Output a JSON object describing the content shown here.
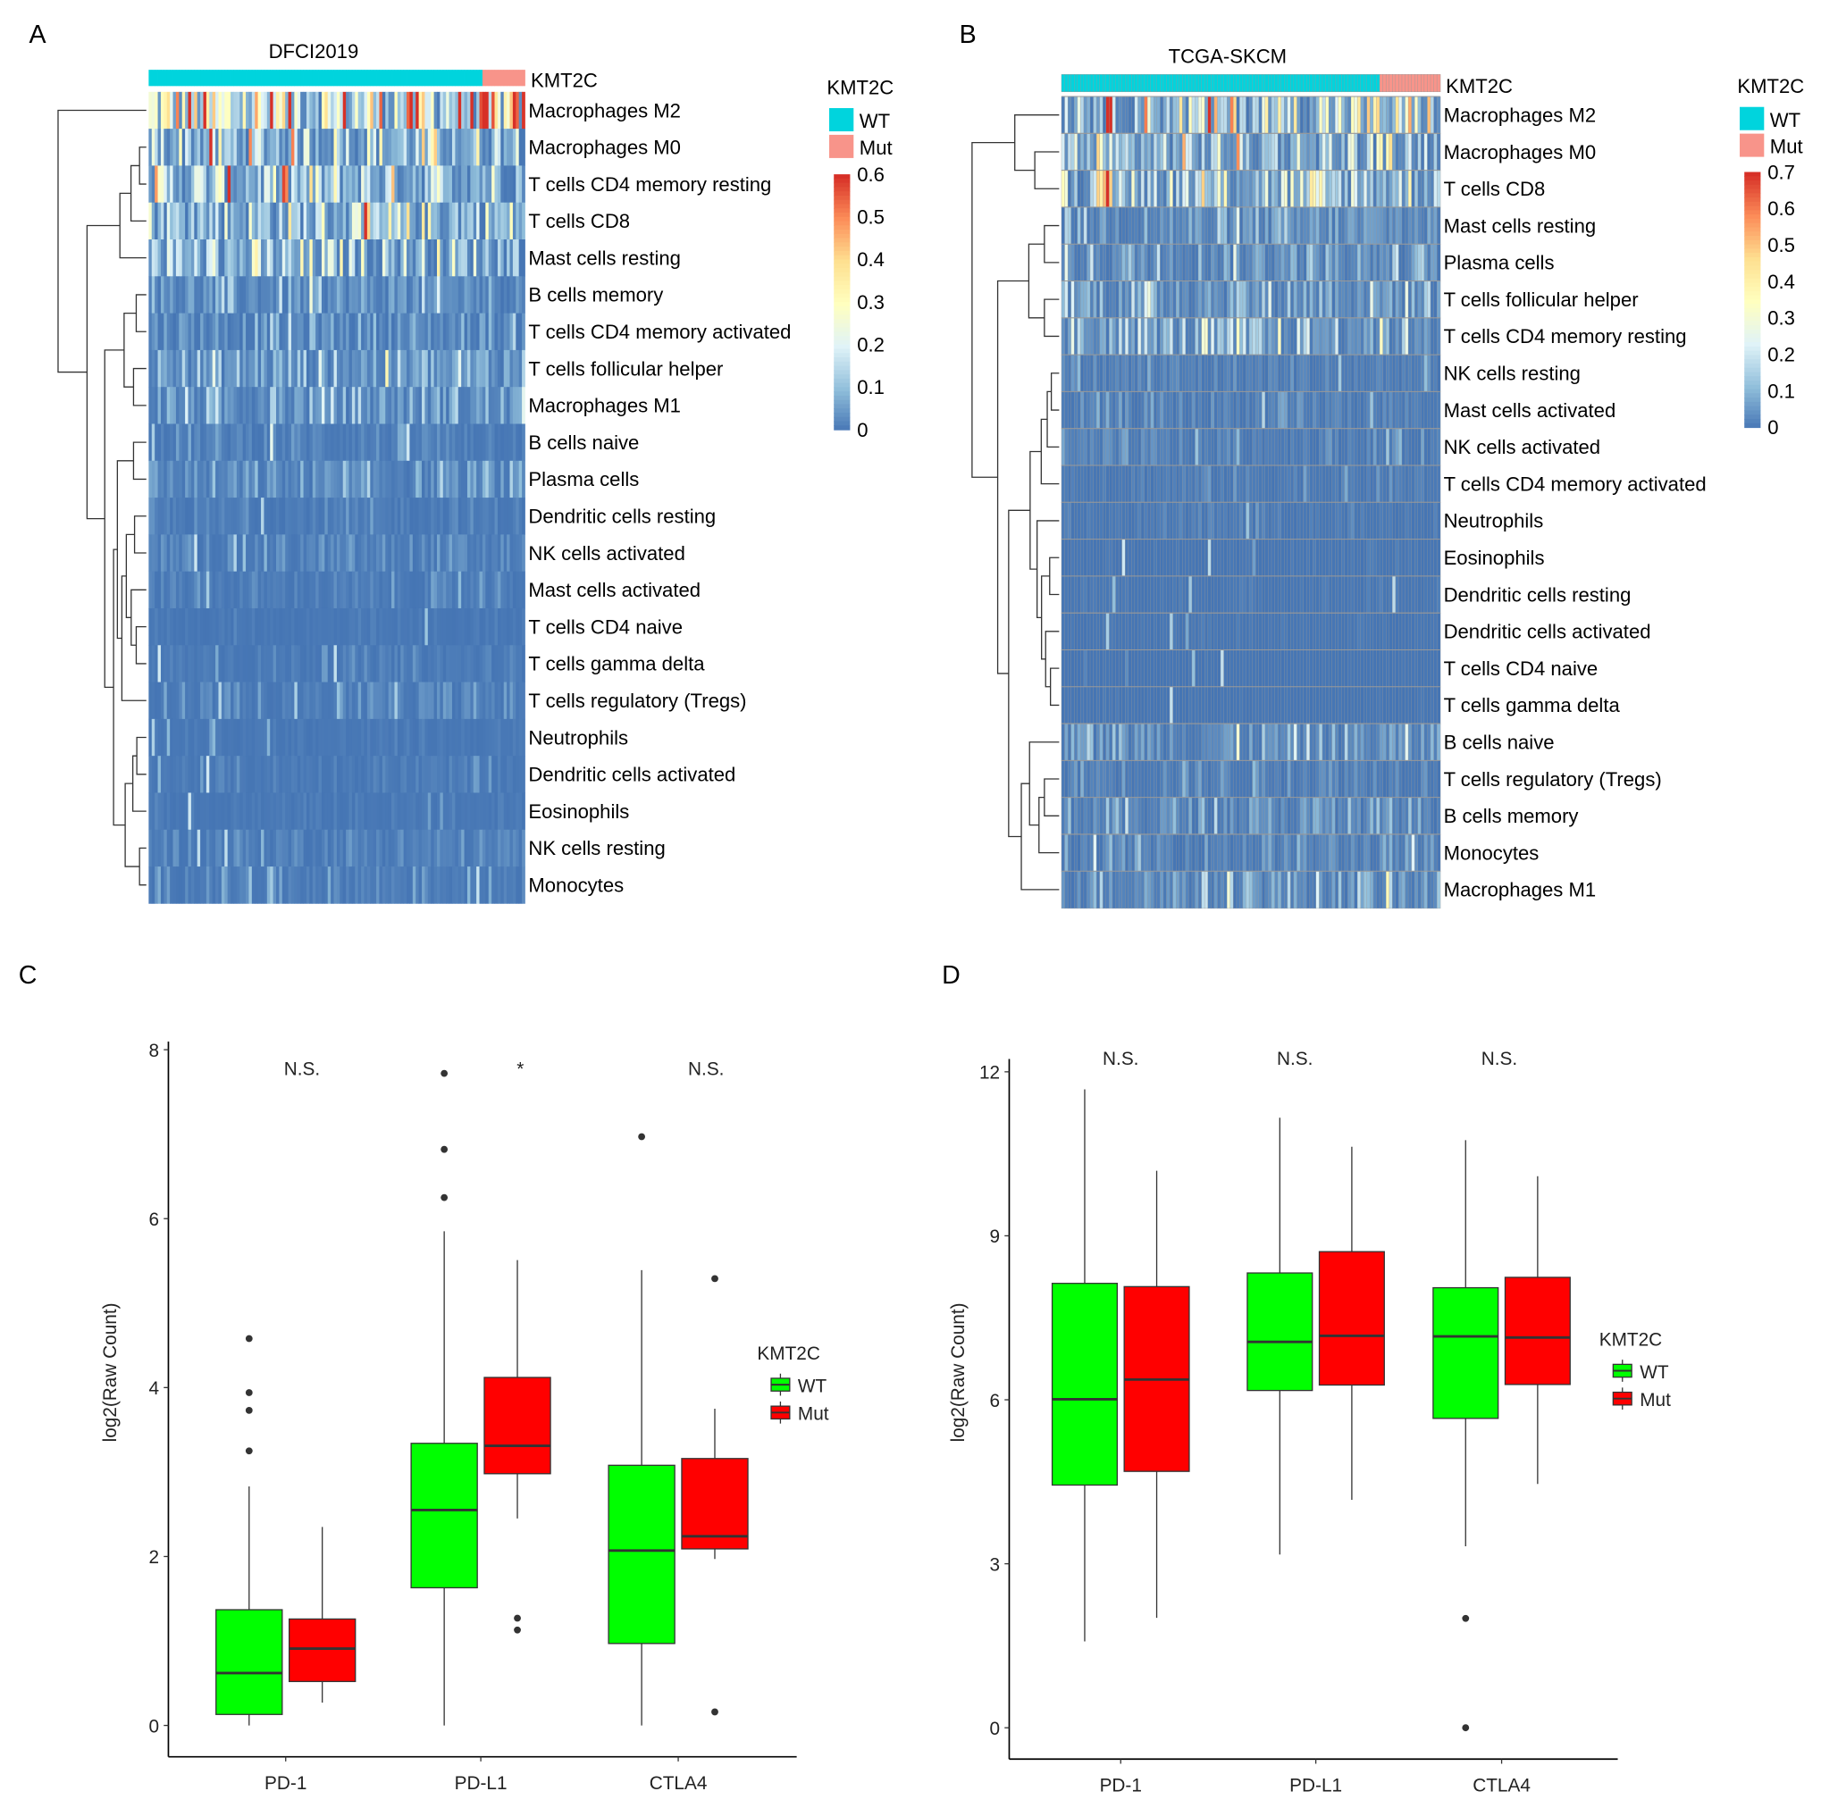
{
  "panels": {
    "a": "A",
    "b": "B",
    "c": "C",
    "d": "D"
  },
  "chart_data": [
    {
      "type": "heatmap",
      "panel": "A",
      "title": "DFCI2019",
      "annotation": {
        "name": "KMT2C",
        "groups": [
          "WT",
          "Mut"
        ],
        "colors": {
          "WT": "#00D4DD",
          "Mut": "#F8948A"
        }
      },
      "colorbar": {
        "range": [
          0,
          0.6
        ],
        "ticks": [
          "0.6",
          "0.5",
          "0.4",
          "0.3",
          "0.2",
          "0.1",
          "0"
        ],
        "colors": [
          "#4575B4",
          "#91BFDB",
          "#E0F3F8",
          "#FFFFBF",
          "#FEE090",
          "#FC8D59",
          "#D73027"
        ]
      },
      "rows": [
        "Macrophages M2",
        "Macrophages M0",
        "T cells CD4 memory resting",
        "T cells CD8",
        "Mast cells resting",
        "B cells memory",
        "T cells CD4 memory activated",
        "T cells follicular helper",
        "Macrophages M1",
        "B cells naive",
        "Plasma cells",
        "Dendritic cells resting",
        "NK cells activated",
        "Mast cells activated",
        "T cells CD4 naive",
        "T cells gamma delta",
        "T cells regulatory (Tregs)",
        "Neutrophils",
        "Dendritic cells activated",
        "Eosinophils",
        "NK cells resting",
        "Monocytes"
      ],
      "row_mean_estimate": [
        0.25,
        0.13,
        0.13,
        0.12,
        0.1,
        0.04,
        0.035,
        0.06,
        0.05,
        0.02,
        0.03,
        0.012,
        0.02,
        0.012,
        0.005,
        0.01,
        0.02,
        0.006,
        0.01,
        0.006,
        0.02,
        0.02
      ],
      "cell_borders": false
    },
    {
      "type": "heatmap",
      "panel": "B",
      "title": "TCGA-SKCM",
      "annotation": {
        "name": "KMT2C",
        "groups": [
          "WT",
          "Mut"
        ],
        "colors": {
          "WT": "#00D4DD",
          "Mut": "#F8948A"
        }
      },
      "colorbar": {
        "range": [
          0,
          0.7
        ],
        "ticks": [
          "0.7",
          "0.6",
          "0.5",
          "0.4",
          "0.3",
          "0.2",
          "0.1",
          "0"
        ],
        "colors": [
          "#4575B4",
          "#91BFDB",
          "#E0F3F8",
          "#FFFFBF",
          "#FEE090",
          "#FC8D59",
          "#D73027"
        ]
      },
      "rows": [
        "Macrophages M2",
        "Macrophages M0",
        "T cells CD8",
        "Mast cells resting",
        "Plasma cells",
        "T cells follicular helper",
        "T cells CD4 memory resting",
        "NK cells resting",
        "Mast cells activated",
        "NK cells activated",
        "T cells CD4 memory activated",
        "Neutrophils",
        "Eosinophils",
        "Dendritic cells resting",
        "Dendritic cells activated",
        "T cells CD4 naive",
        "T cells gamma delta",
        "B cells naive",
        "T cells regulatory (Tregs)",
        "B cells memory",
        "Monocytes",
        "Macrophages M1"
      ],
      "row_mean_estimate": [
        0.2,
        0.13,
        0.16,
        0.05,
        0.06,
        0.08,
        0.09,
        0.02,
        0.02,
        0.02,
        0.015,
        0.008,
        0.004,
        0.006,
        0.004,
        0.002,
        0.003,
        0.05,
        0.03,
        0.04,
        0.03,
        0.06
      ],
      "cell_borders": true
    },
    {
      "type": "box",
      "panel": "C",
      "ylabel": "log2(Raw Count)",
      "ylim": [
        -0.35,
        8.05
      ],
      "yticks": [
        "0",
        "2",
        "4",
        "6",
        "8"
      ],
      "categories": [
        "PD-1",
        "PD-L1",
        "CTLA4"
      ],
      "significance": [
        "N.S.",
        "*",
        "N.S."
      ],
      "legend": {
        "title": "KMT2C",
        "placement": "right"
      },
      "series": [
        {
          "name": "WT",
          "color": "#00FF00",
          "boxes": [
            {
              "low": 0,
              "q1": 0.13,
              "median": 0.62,
              "q3": 1.37,
              "high": 2.83,
              "outliers": [
                4.58,
                3.94,
                3.73,
                3.25
              ]
            },
            {
              "low": 0,
              "q1": 1.63,
              "median": 2.55,
              "q3": 3.34,
              "high": 5.85,
              "outliers": [
                7.72,
                6.82,
                6.25
              ]
            },
            {
              "low": 0,
              "q1": 0.97,
              "median": 2.07,
              "q3": 3.08,
              "high": 5.39,
              "outliers": [
                6.97
              ]
            }
          ]
        },
        {
          "name": "Mut",
          "color": "#FF0000",
          "boxes": [
            {
              "low": 0.27,
              "q1": 0.52,
              "median": 0.91,
              "q3": 1.26,
              "high": 2.35,
              "outliers": []
            },
            {
              "low": 2.45,
              "q1": 2.98,
              "median": 3.31,
              "q3": 4.12,
              "high": 5.51,
              "outliers": [
                1.27,
                1.13
              ]
            },
            {
              "low": 1.97,
              "q1": 2.09,
              "median": 2.24,
              "q3": 3.16,
              "high": 3.75,
              "outliers": [
                5.29,
                0.16
              ]
            }
          ]
        }
      ]
    },
    {
      "type": "box",
      "panel": "D",
      "ylabel": "log2(Raw Count)",
      "ylim": [
        -0.6,
        12.1
      ],
      "yticks": [
        "0",
        "3",
        "6",
        "9",
        "12"
      ],
      "categories": [
        "PD-1",
        "PD-L1",
        "CTLA4"
      ],
      "significance": [
        "N.S.",
        "N.S.",
        "N.S."
      ],
      "legend": {
        "title": "KMT2C",
        "placement": "right"
      },
      "series": [
        {
          "name": "WT",
          "color": "#00FF00",
          "boxes": [
            {
              "low": 1.58,
              "q1": 4.44,
              "median": 6.01,
              "q3": 8.13,
              "high": 11.68,
              "outliers": []
            },
            {
              "low": 3.17,
              "q1": 6.17,
              "median": 7.06,
              "q3": 8.32,
              "high": 11.16,
              "outliers": []
            },
            {
              "low": 3.32,
              "q1": 5.66,
              "median": 7.16,
              "q3": 8.05,
              "high": 10.75,
              "outliers": [
                2.0,
                0
              ]
            }
          ]
        },
        {
          "name": "Mut",
          "color": "#FF0000",
          "boxes": [
            {
              "low": 2.01,
              "q1": 4.69,
              "median": 6.37,
              "q3": 8.07,
              "high": 10.19,
              "outliers": []
            },
            {
              "low": 4.17,
              "q1": 6.27,
              "median": 7.17,
              "q3": 8.71,
              "high": 10.63,
              "outliers": []
            },
            {
              "low": 4.46,
              "q1": 6.28,
              "median": 7.14,
              "q3": 8.24,
              "high": 10.09,
              "outliers": []
            }
          ]
        }
      ]
    }
  ]
}
